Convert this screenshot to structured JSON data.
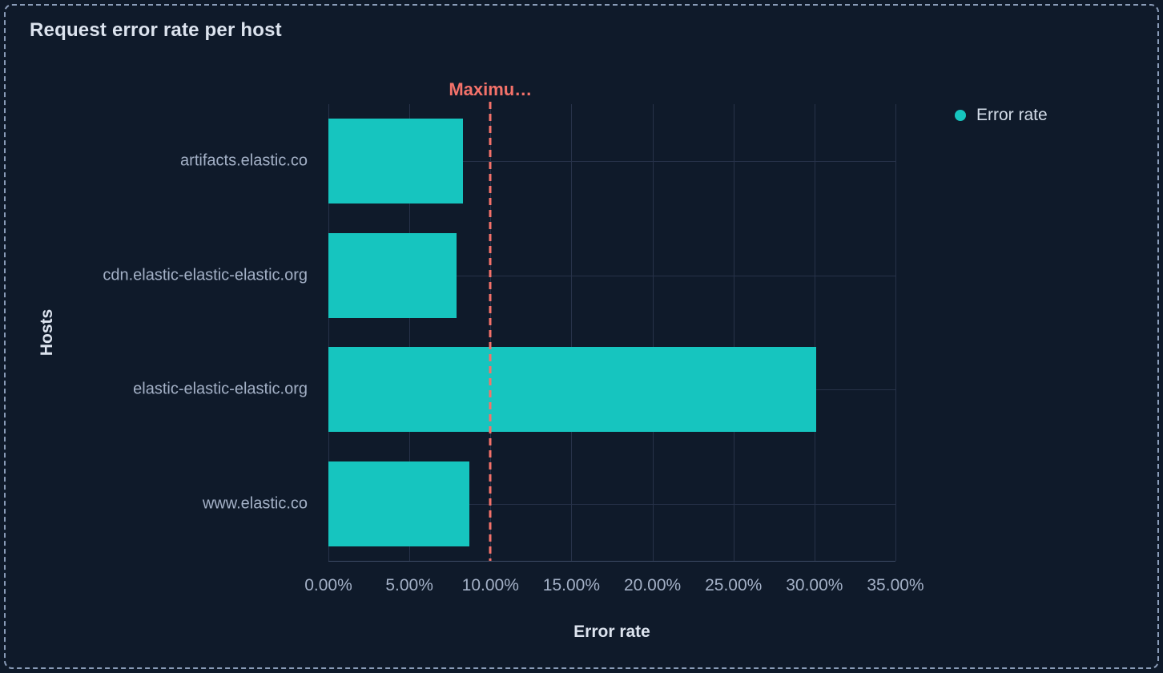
{
  "panel": {
    "title": "Request error rate per host"
  },
  "axes": {
    "x_title": "Error rate",
    "y_title": "Hosts"
  },
  "legend": {
    "items": [
      {
        "label": "Error rate",
        "color": "#16c5bf"
      }
    ]
  },
  "threshold": {
    "label": "Maximu…",
    "value": 10,
    "color": "#f4726a"
  },
  "chart_data": {
    "type": "bar",
    "orientation": "horizontal",
    "title": "Request error rate per host",
    "xlabel": "Error rate",
    "ylabel": "Hosts",
    "categories": [
      "artifacts.elastic.co",
      "cdn.elastic-elastic-elastic.org",
      "elastic-elastic-elastic.org",
      "www.elastic.co"
    ],
    "series": [
      {
        "name": "Error rate",
        "values": [
          8.3,
          7.9,
          30.1,
          8.7
        ]
      }
    ],
    "unit": "%",
    "xlim": [
      0,
      35
    ],
    "x_tick_values": [
      0,
      5,
      10,
      15,
      20,
      25,
      30,
      35
    ],
    "x_tick_labels": [
      "0.00%",
      "5.00%",
      "10.00%",
      "15.00%",
      "20.00%",
      "25.00%",
      "30.00%",
      "35.00%"
    ],
    "grid": true,
    "legend_position": "right",
    "bar_color": "#16c5bf",
    "annotations": [
      {
        "type": "vline",
        "x": 10,
        "label": "Maximu…",
        "style": "dashed",
        "color": "#f4726a"
      }
    ]
  },
  "colors": {
    "background": "#0f1a2a",
    "panel_border": "#8a9cb8",
    "bar": "#16c5bf",
    "threshold": "#f4726a",
    "grid": "#273249",
    "axis_line": "#3e4b66",
    "title_text": "#dce3ee",
    "label_text": "#a3b0c6",
    "legend_text": "#d3dce8"
  }
}
